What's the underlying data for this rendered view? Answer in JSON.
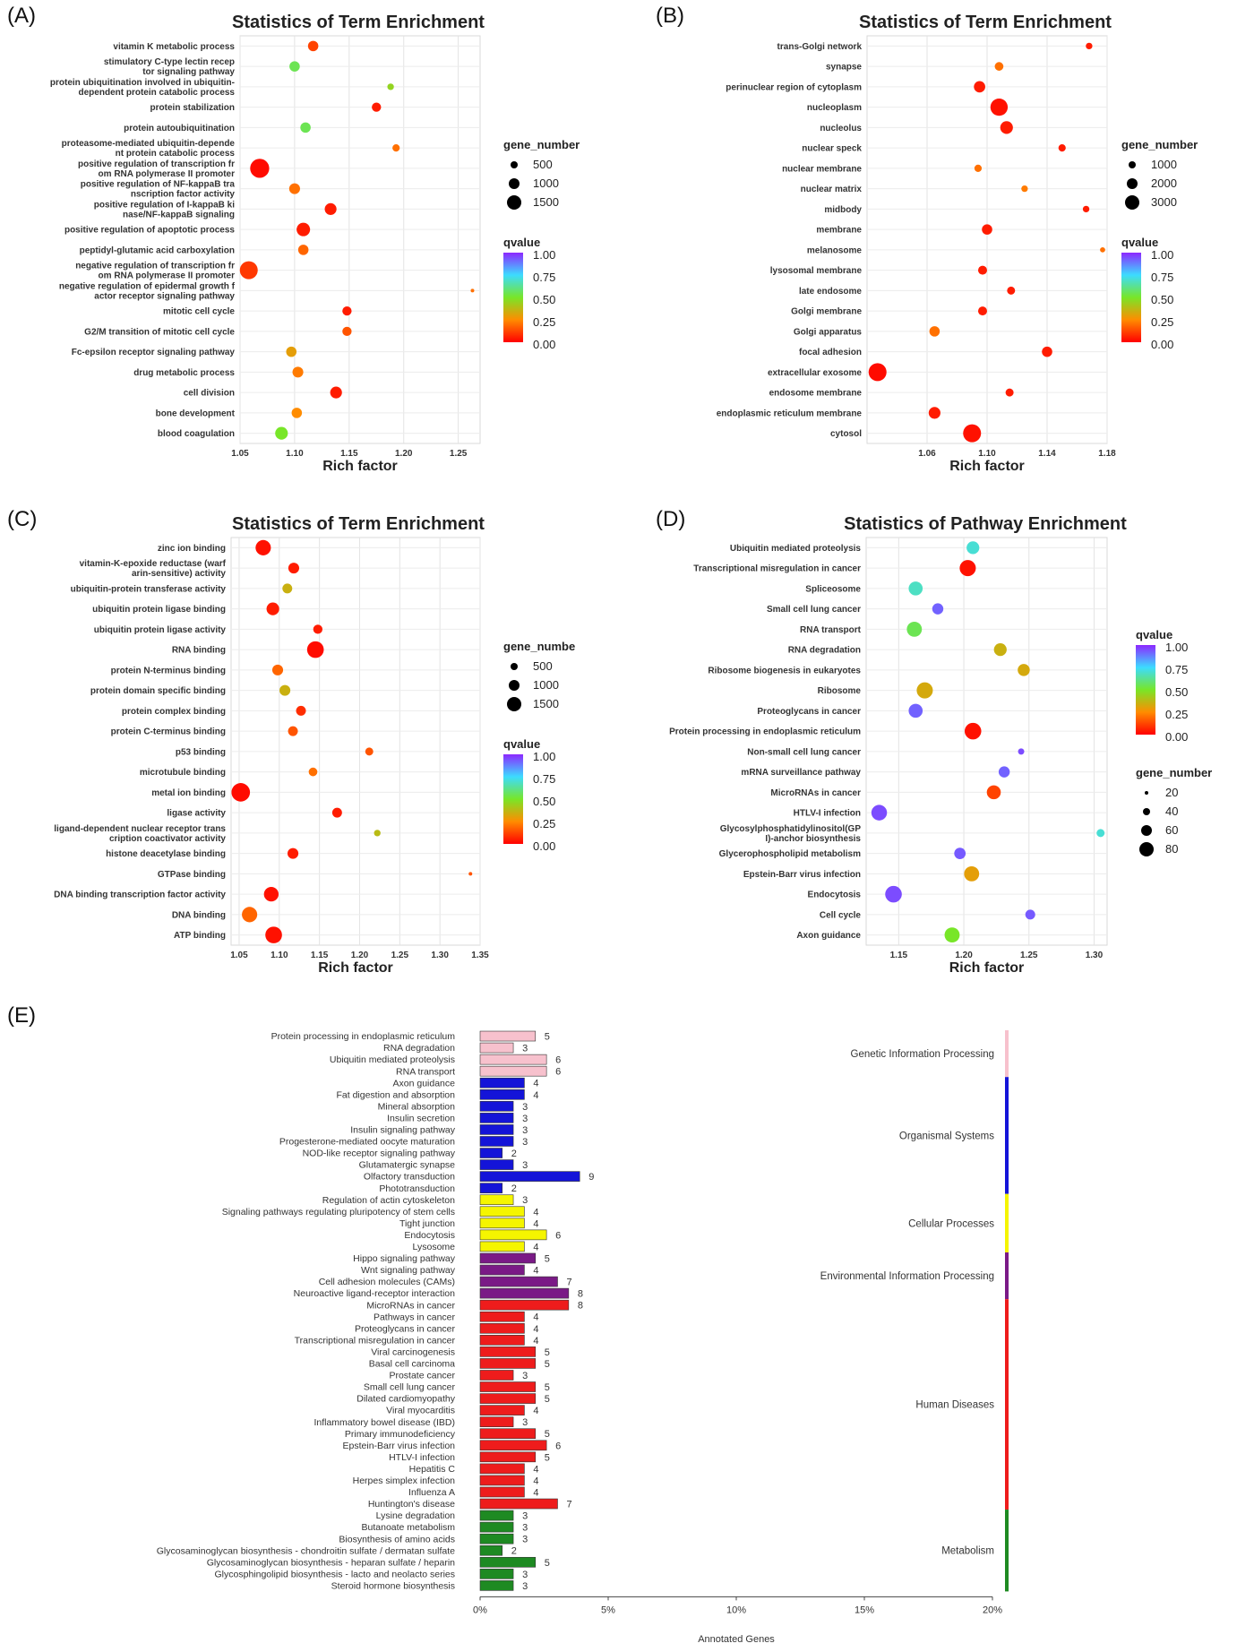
{
  "chart_data": [
    {
      "panel": "(A)",
      "type": "scatter",
      "title": "Statistics of Term Enrichment",
      "xlabel": "Rich factor",
      "xlim": [
        1.05,
        1.27
      ],
      "xticks": [
        "1.05",
        "1.10",
        "1.15",
        "1.20",
        "1.25"
      ],
      "size_legend_title": "gene_number",
      "size_legend_values": [
        "500",
        "1000",
        "1500"
      ],
      "color_legend_title": "qvalue",
      "color_legend_values": [
        "1.00",
        "0.75",
        "0.50",
        "0.25",
        "0.00"
      ],
      "grid": true,
      "points": [
        {
          "label": "vitamin K metabolic process",
          "x": 1.117,
          "q": 0.12,
          "n": 500
        },
        {
          "label": "stimulatory C-type lectin recep\ntor signaling pathway",
          "x": 1.1,
          "q": 0.55,
          "n": 500
        },
        {
          "label": "protein ubiquitination involved in ubiquitin-\ndependent protein catabolic process",
          "x": 1.188,
          "q": 0.45,
          "n": 200
        },
        {
          "label": "protein stabilization",
          "x": 1.175,
          "q": 0.05,
          "n": 400
        },
        {
          "label": "protein autoubiquitination",
          "x": 1.11,
          "q": 0.55,
          "n": 500
        },
        {
          "label": "proteasome-mediated ubiquitin-depende\nnt protein catabolic process",
          "x": 1.193,
          "q": 0.2,
          "n": 250
        },
        {
          "label": "positive regulation of transcription fr\nom RNA polymerase II promoter",
          "x": 1.068,
          "q": 0.02,
          "n": 1700
        },
        {
          "label": "positive regulation of NF-kappaB tra\nnscription factor activity",
          "x": 1.1,
          "q": 0.2,
          "n": 550
        },
        {
          "label": "positive regulation of I-kappaB ki\nnase/NF-kappaB signaling",
          "x": 1.133,
          "q": 0.05,
          "n": 650
        },
        {
          "label": "positive regulation of apoptotic process",
          "x": 1.108,
          "q": 0.05,
          "n": 850
        },
        {
          "label": "peptidyl-glutamic acid carboxylation",
          "x": 1.108,
          "q": 0.18,
          "n": 500
        },
        {
          "label": "negative regulation of transcription fr\nom RNA polymerase II promoter",
          "x": 1.058,
          "q": 0.1,
          "n": 1500
        },
        {
          "label": "negative regulation of epidermal growth f\nactor receptor signaling pathway",
          "x": 1.263,
          "q": 0.2,
          "n": 60
        },
        {
          "label": "mitotic cell cycle",
          "x": 1.148,
          "q": 0.05,
          "n": 400
        },
        {
          "label": "G2/M transition of mitotic cell cycle",
          "x": 1.148,
          "q": 0.15,
          "n": 400
        },
        {
          "label": "Fc-epsilon receptor signaling pathway",
          "x": 1.097,
          "q": 0.3,
          "n": 500
        },
        {
          "label": "drug metabolic process",
          "x": 1.103,
          "q": 0.22,
          "n": 550
        },
        {
          "label": "cell division",
          "x": 1.138,
          "q": 0.05,
          "n": 650
        },
        {
          "label": "bone development",
          "x": 1.102,
          "q": 0.25,
          "n": 500
        },
        {
          "label": "blood coagulation",
          "x": 1.088,
          "q": 0.5,
          "n": 750
        }
      ]
    },
    {
      "panel": "(B)",
      "type": "scatter",
      "title": "Statistics of Term Enrichment",
      "xlabel": "Rich factor",
      "xlim": [
        1.02,
        1.18
      ],
      "xticks": [
        "1.06",
        "1.10",
        "1.14",
        "1.18"
      ],
      "size_legend_title": "gene_number",
      "size_legend_values": [
        "1000",
        "2000",
        "3000"
      ],
      "color_legend_title": "qvalue",
      "color_legend_values": [
        "1.00",
        "0.75",
        "0.50",
        "0.25",
        "0.00"
      ],
      "grid": true,
      "points": [
        {
          "label": "trans-Golgi network",
          "x": 1.168,
          "q": 0.05,
          "n": 400
        },
        {
          "label": "synapse",
          "x": 1.108,
          "q": 0.2,
          "n": 700
        },
        {
          "label": "perinuclear region of cytoplasm",
          "x": 1.095,
          "q": 0.05,
          "n": 1200
        },
        {
          "label": "nucleoplasm",
          "x": 1.108,
          "q": 0.03,
          "n": 2800
        },
        {
          "label": "nucleolus",
          "x": 1.113,
          "q": 0.05,
          "n": 1500
        },
        {
          "label": "nuclear speck",
          "x": 1.15,
          "q": 0.05,
          "n": 500
        },
        {
          "label": "nuclear membrane",
          "x": 1.094,
          "q": 0.2,
          "n": 500
        },
        {
          "label": "nuclear matrix",
          "x": 1.125,
          "q": 0.22,
          "n": 400
        },
        {
          "label": "midbody",
          "x": 1.166,
          "q": 0.05,
          "n": 400
        },
        {
          "label": "membrane",
          "x": 1.1,
          "q": 0.05,
          "n": 1000
        },
        {
          "label": "melanosome",
          "x": 1.177,
          "q": 0.2,
          "n": 250
        },
        {
          "label": "lysosomal membrane",
          "x": 1.097,
          "q": 0.05,
          "n": 750
        },
        {
          "label": "late endosome",
          "x": 1.116,
          "q": 0.05,
          "n": 600
        },
        {
          "label": "Golgi membrane",
          "x": 1.097,
          "q": 0.05,
          "n": 750
        },
        {
          "label": "Golgi apparatus",
          "x": 1.065,
          "q": 0.2,
          "n": 1000
        },
        {
          "label": "focal adhesion",
          "x": 1.14,
          "q": 0.05,
          "n": 1000
        },
        {
          "label": "extracellular exosome",
          "x": 1.027,
          "q": 0.02,
          "n": 3000
        },
        {
          "label": "endosome membrane",
          "x": 1.115,
          "q": 0.05,
          "n": 600
        },
        {
          "label": "endoplasmic reticulum membrane",
          "x": 1.065,
          "q": 0.05,
          "n": 1300
        },
        {
          "label": "cytosol",
          "x": 1.09,
          "q": 0.03,
          "n": 3000
        }
      ]
    },
    {
      "panel": "(C)",
      "type": "scatter",
      "title": "Statistics of Term Enrichment",
      "xlabel": "Rich factor",
      "xlim": [
        1.04,
        1.35
      ],
      "xticks": [
        "1.05",
        "1.10",
        "1.15",
        "1.20",
        "1.25",
        "1.30",
        "1.35"
      ],
      "size_legend_title": "gene_numbe",
      "size_legend_values": [
        "500",
        "1000",
        "1500"
      ],
      "color_legend_title": "qvalue",
      "color_legend_values": [
        "1.00",
        "0.75",
        "0.50",
        "0.25",
        "0.00"
      ],
      "grid": true,
      "points": [
        {
          "label": "zinc ion binding",
          "x": 1.08,
          "q": 0.03,
          "n": 1100
        },
        {
          "label": "vitamin-K-epoxide reductase (warf\narin-sensitive) activity",
          "x": 1.118,
          "q": 0.05,
          "n": 550
        },
        {
          "label": "ubiquitin-protein transferase activity",
          "x": 1.11,
          "q": 0.35,
          "n": 450
        },
        {
          "label": "ubiquitin protein ligase binding",
          "x": 1.092,
          "q": 0.05,
          "n": 750
        },
        {
          "label": "ubiquitin protein ligase activity",
          "x": 1.148,
          "q": 0.05,
          "n": 400
        },
        {
          "label": "RNA binding",
          "x": 1.145,
          "q": 0.02,
          "n": 1300
        },
        {
          "label": "protein N-terminus binding",
          "x": 1.098,
          "q": 0.18,
          "n": 550
        },
        {
          "label": "protein domain specific binding",
          "x": 1.107,
          "q": 0.35,
          "n": 550
        },
        {
          "label": "protein complex binding",
          "x": 1.127,
          "q": 0.08,
          "n": 450
        },
        {
          "label": "protein C-terminus binding",
          "x": 1.117,
          "q": 0.15,
          "n": 450
        },
        {
          "label": "p53 binding",
          "x": 1.212,
          "q": 0.15,
          "n": 300
        },
        {
          "label": "microtubule binding",
          "x": 1.142,
          "q": 0.2,
          "n": 350
        },
        {
          "label": "metal ion binding",
          "x": 1.052,
          "q": 0.02,
          "n": 1600
        },
        {
          "label": "ligase activity",
          "x": 1.172,
          "q": 0.05,
          "n": 450
        },
        {
          "label": "ligand-dependent nuclear receptor trans\ncription coactivator activity",
          "x": 1.222,
          "q": 0.38,
          "n": 200
        },
        {
          "label": "histone deacetylase binding",
          "x": 1.117,
          "q": 0.05,
          "n": 550
        },
        {
          "label": "GTPase binding",
          "x": 1.338,
          "q": 0.15,
          "n": 60
        },
        {
          "label": "DNA binding transcription factor activity",
          "x": 1.09,
          "q": 0.03,
          "n": 1000
        },
        {
          "label": "DNA binding",
          "x": 1.063,
          "q": 0.18,
          "n": 1100
        },
        {
          "label": "ATP binding",
          "x": 1.093,
          "q": 0.03,
          "n": 1300
        }
      ]
    },
    {
      "panel": "(D)",
      "type": "scatter",
      "title": "Statistics of Pathway Enrichment",
      "xlabel": "Rich factor",
      "xlim": [
        1.125,
        1.31
      ],
      "xticks": [
        "1.15",
        "1.20",
        "1.25",
        "1.30"
      ],
      "size_legend_title": "gene_number",
      "size_legend_values": [
        "20",
        "40",
        "60",
        "80"
      ],
      "color_legend_title": "qvalue",
      "color_legend_values": [
        "1.00",
        "0.75",
        "0.50",
        "0.25",
        "0.00"
      ],
      "grid": true,
      "points": [
        {
          "label": "Ubiquitin mediated proteolysis",
          "x": 1.207,
          "q": 0.7,
          "n": 50
        },
        {
          "label": "Transcriptional misregulation in cancer",
          "x": 1.203,
          "q": 0.03,
          "n": 80
        },
        {
          "label": "Spliceosome",
          "x": 1.163,
          "q": 0.68,
          "n": 60
        },
        {
          "label": "Small cell lung cancer",
          "x": 1.18,
          "q": 0.92,
          "n": 38
        },
        {
          "label": "RNA transport",
          "x": 1.162,
          "q": 0.55,
          "n": 70
        },
        {
          "label": "RNA degradation",
          "x": 1.228,
          "q": 0.35,
          "n": 50
        },
        {
          "label": "Ribosome biogenesis in eukaryotes",
          "x": 1.246,
          "q": 0.33,
          "n": 45
        },
        {
          "label": "Ribosome",
          "x": 1.17,
          "q": 0.33,
          "n": 80
        },
        {
          "label": "Proteoglycans in cancer",
          "x": 1.163,
          "q": 0.92,
          "n": 60
        },
        {
          "label": "Protein processing in endoplasmic reticulum",
          "x": 1.207,
          "q": 0.03,
          "n": 85
        },
        {
          "label": "Non-small cell lung cancer",
          "x": 1.244,
          "q": 0.95,
          "n": 12
        },
        {
          "label": "mRNA surveillance pathway",
          "x": 1.231,
          "q": 0.92,
          "n": 38
        },
        {
          "label": "MicroRNAs in cancer",
          "x": 1.223,
          "q": 0.12,
          "n": 60
        },
        {
          "label": "HTLV-I infection",
          "x": 1.135,
          "q": 0.95,
          "n": 75
        },
        {
          "label": "Glycosylphosphatidylinositol(GP\nI)-anchor biosynthesis",
          "x": 1.305,
          "q": 0.7,
          "n": 20
        },
        {
          "label": "Glycerophospholipid metabolism",
          "x": 1.197,
          "q": 0.93,
          "n": 40
        },
        {
          "label": "Epstein-Barr virus infection",
          "x": 1.206,
          "q": 0.3,
          "n": 70
        },
        {
          "label": "Endocytosis",
          "x": 1.146,
          "q": 0.95,
          "n": 85
        },
        {
          "label": "Cell cycle",
          "x": 1.251,
          "q": 0.93,
          "n": 30
        },
        {
          "label": "Axon guidance",
          "x": 1.191,
          "q": 0.5,
          "n": 70
        }
      ]
    },
    {
      "panel": "(E)",
      "type": "bar",
      "orientation": "horizontal",
      "xlabel": "Annotated Genes",
      "xticks": [
        "0%",
        "5%",
        "10%",
        "15%",
        "20%"
      ],
      "xlim": [
        0,
        20
      ],
      "groups": [
        {
          "name": "Genetic Information Processing",
          "color": "#f7c1cd",
          "items": [
            [
              "Protein processing in endoplasmic reticulum",
              5
            ],
            [
              "RNA degradation",
              3
            ],
            [
              "Ubiquitin mediated proteolysis",
              6
            ],
            [
              "RNA transport",
              6
            ]
          ]
        },
        {
          "name": "Organismal Systems",
          "color": "#1414d8",
          "items": [
            [
              "Axon guidance",
              4
            ],
            [
              "Fat digestion and absorption",
              4
            ],
            [
              "Mineral absorption",
              3
            ],
            [
              "Insulin secretion",
              3
            ],
            [
              "Insulin signaling pathway",
              3
            ],
            [
              "Progesterone-mediated oocyte maturation",
              3
            ],
            [
              "NOD-like receptor signaling pathway",
              2
            ],
            [
              "Glutamatergic synapse",
              3
            ],
            [
              "Olfactory transduction",
              9
            ],
            [
              "Phototransduction",
              2
            ]
          ]
        },
        {
          "name": "Cellular Processes",
          "color": "#f5f500",
          "items": [
            [
              "Regulation of actin cytoskeleton",
              3
            ],
            [
              "Signaling pathways regulating pluripotency of stem cells",
              4
            ],
            [
              "Tight junction",
              4
            ],
            [
              "Endocytosis",
              6
            ],
            [
              "Lysosome",
              4
            ]
          ]
        },
        {
          "name": "Environmental Information Processing",
          "color": "#7a1a86",
          "items": [
            [
              "Hippo signaling pathway",
              5
            ],
            [
              "Wnt signaling pathway",
              4
            ],
            [
              "Cell adhesion molecules (CAMs)",
              7
            ],
            [
              "Neuroactive ligand-receptor interaction",
              8
            ]
          ]
        },
        {
          "name": "Human Diseases",
          "color": "#ee1c1c",
          "items": [
            [
              "MicroRNAs in cancer",
              8
            ],
            [
              "Pathways in cancer",
              4
            ],
            [
              "Proteoglycans in cancer",
              4
            ],
            [
              "Transcriptional misregulation in cancer",
              4
            ],
            [
              "Viral carcinogenesis",
              5
            ],
            [
              "Basal cell carcinoma",
              5
            ],
            [
              "Prostate cancer",
              3
            ],
            [
              "Small cell lung cancer",
              5
            ],
            [
              "Dilated cardiomyopathy",
              5
            ],
            [
              "Viral myocarditis",
              4
            ],
            [
              "Inflammatory bowel disease (IBD)",
              3
            ],
            [
              "Primary immunodeficiency",
              5
            ],
            [
              "Epstein-Barr virus infection",
              6
            ],
            [
              "HTLV-I infection",
              5
            ],
            [
              "Hepatitis C",
              4
            ],
            [
              "Herpes simplex infection",
              4
            ],
            [
              "Influenza A",
              4
            ],
            [
              "Huntington's disease",
              7
            ]
          ]
        },
        {
          "name": "Metabolism",
          "color": "#1e8a22",
          "items": [
            [
              "Lysine degradation",
              3
            ],
            [
              "Butanoate metabolism",
              3
            ],
            [
              "Biosynthesis of amino acids",
              3
            ],
            [
              "Glycosaminoglycan biosynthesis - chondroitin sulfate / dermatan sulfate",
              2
            ],
            [
              "Glycosaminoglycan biosynthesis - heparan sulfate / heparin",
              5
            ],
            [
              "Glycosphingolipid biosynthesis - lacto and neolacto series",
              3
            ],
            [
              "Steroid hormone biosynthesis",
              3
            ]
          ]
        }
      ]
    }
  ]
}
